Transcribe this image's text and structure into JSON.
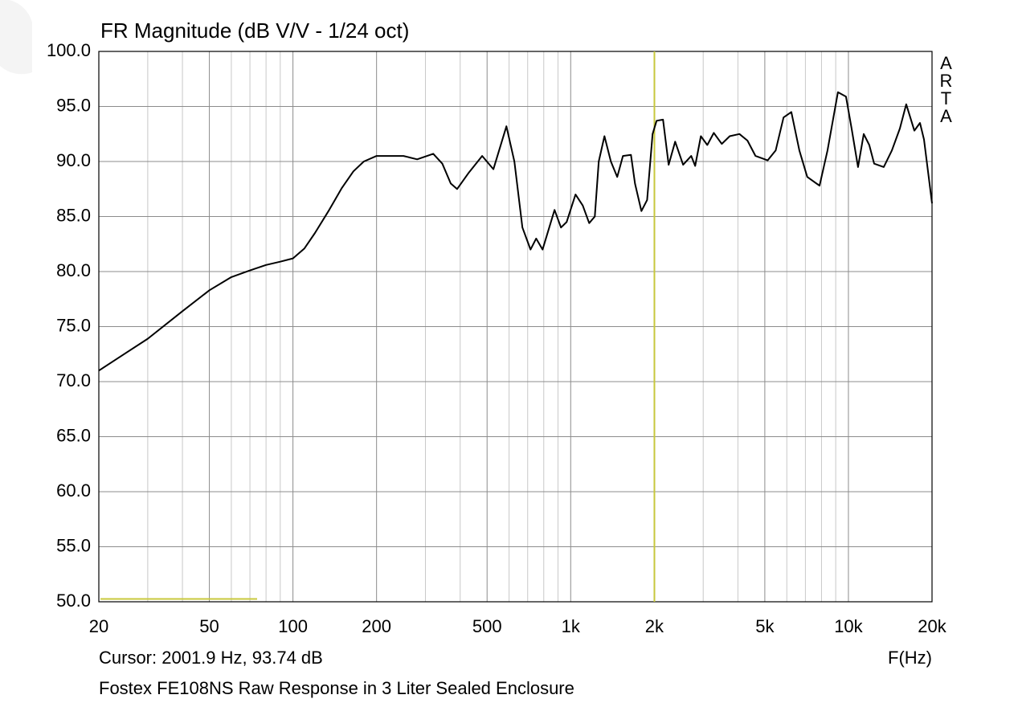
{
  "chart_data": {
    "type": "line",
    "title": "FR Magnitude (dB V/V - 1/24 oct)",
    "x_label": "F(Hz)",
    "cursor": {
      "label": "Cursor: 2001.9 Hz, 93.74 dB",
      "x": 2001.9,
      "color": "#c8c83c"
    },
    "caption": "Fostex FE108NS Raw Response in 3 Liter Sealed Enclosure",
    "watermark": "ARTA",
    "xscale": "log",
    "xlim": [
      20,
      20000
    ],
    "ylim": [
      50,
      100
    ],
    "xticks": [
      20,
      50,
      100,
      200,
      500,
      {
        "value": 1000,
        "label": "1k"
      },
      {
        "value": 2000,
        "label": "2k"
      },
      {
        "value": 5000,
        "label": "5k"
      },
      {
        "value": 10000,
        "label": "10k"
      },
      {
        "value": 20000,
        "label": "20k"
      }
    ],
    "x_grid": [
      30,
      40,
      60,
      70,
      80,
      90,
      300,
      400,
      600,
      700,
      800,
      900,
      3000,
      4000,
      6000,
      7000,
      8000,
      9000
    ],
    "yticks": [
      {
        "value": 50,
        "label": "50.0"
      },
      {
        "value": 55,
        "label": "55.0"
      },
      {
        "value": 60,
        "label": "60.0"
      },
      {
        "value": 65,
        "label": "65.0"
      },
      {
        "value": 70,
        "label": "70.0"
      },
      {
        "value": 75,
        "label": "75.0"
      },
      {
        "value": 80,
        "label": "80.0"
      },
      {
        "value": 85,
        "label": "85.0"
      },
      {
        "value": 90,
        "label": "90.0"
      },
      {
        "value": 95,
        "label": "95.0"
      },
      {
        "value": 100,
        "label": "100.0"
      }
    ],
    "grid": true,
    "series": [
      {
        "color": "#000000",
        "x": [
          20,
          25,
          30,
          40,
          50,
          60,
          70,
          80,
          90,
          100,
          110,
          120,
          135,
          150,
          165,
          180,
          200,
          250,
          280,
          320,
          345,
          370,
          390,
          430,
          480,
          527,
          587,
          627,
          670,
          717,
          751,
          792,
          875,
          923,
          967,
          1041,
          1105,
          1166,
          1221,
          1262,
          1323,
          1395,
          1471,
          1542,
          1648,
          1704,
          1797,
          1884,
          1972,
          2039,
          2150,
          2253,
          2377,
          2540,
          2716,
          2806,
          2942,
          3103,
          3276,
          3498,
          3738,
          4050,
          4330,
          4630,
          5120,
          5470,
          5840,
          6230,
          6660,
          7110,
          7870,
          8410,
          9170,
          9800,
          10270,
          10830,
          11350,
          11890,
          12380,
          13400,
          14330,
          15320,
          16150,
          17270,
          18100,
          18710,
          20000
        ],
        "values": [
          71.0,
          72.6,
          73.9,
          76.4,
          78.3,
          79.5,
          80.1,
          80.6,
          80.9,
          81.2,
          82.1,
          83.5,
          85.6,
          87.6,
          89.1,
          90.0,
          90.5,
          90.5,
          90.2,
          90.7,
          89.8,
          88.0,
          87.5,
          89.0,
          90.5,
          89.3,
          93.2,
          90.0,
          84.0,
          82.0,
          83.0,
          82.0,
          85.6,
          84.0,
          84.5,
          87.0,
          86.0,
          84.4,
          85.0,
          90.0,
          92.3,
          90.0,
          88.6,
          90.5,
          90.6,
          88.0,
          85.5,
          86.5,
          92.5,
          93.7,
          93.8,
          89.7,
          91.8,
          89.7,
          90.5,
          89.6,
          92.3,
          91.5,
          92.6,
          91.6,
          92.3,
          92.5,
          91.9,
          90.5,
          90.1,
          91.0,
          94.0,
          94.5,
          91.0,
          88.6,
          87.8,
          91.0,
          96.3,
          95.9,
          93.0,
          89.5,
          92.5,
          91.5,
          89.8,
          89.5,
          91.0,
          93.0,
          95.2,
          92.8,
          93.5,
          92.0,
          86.2
        ]
      }
    ]
  }
}
